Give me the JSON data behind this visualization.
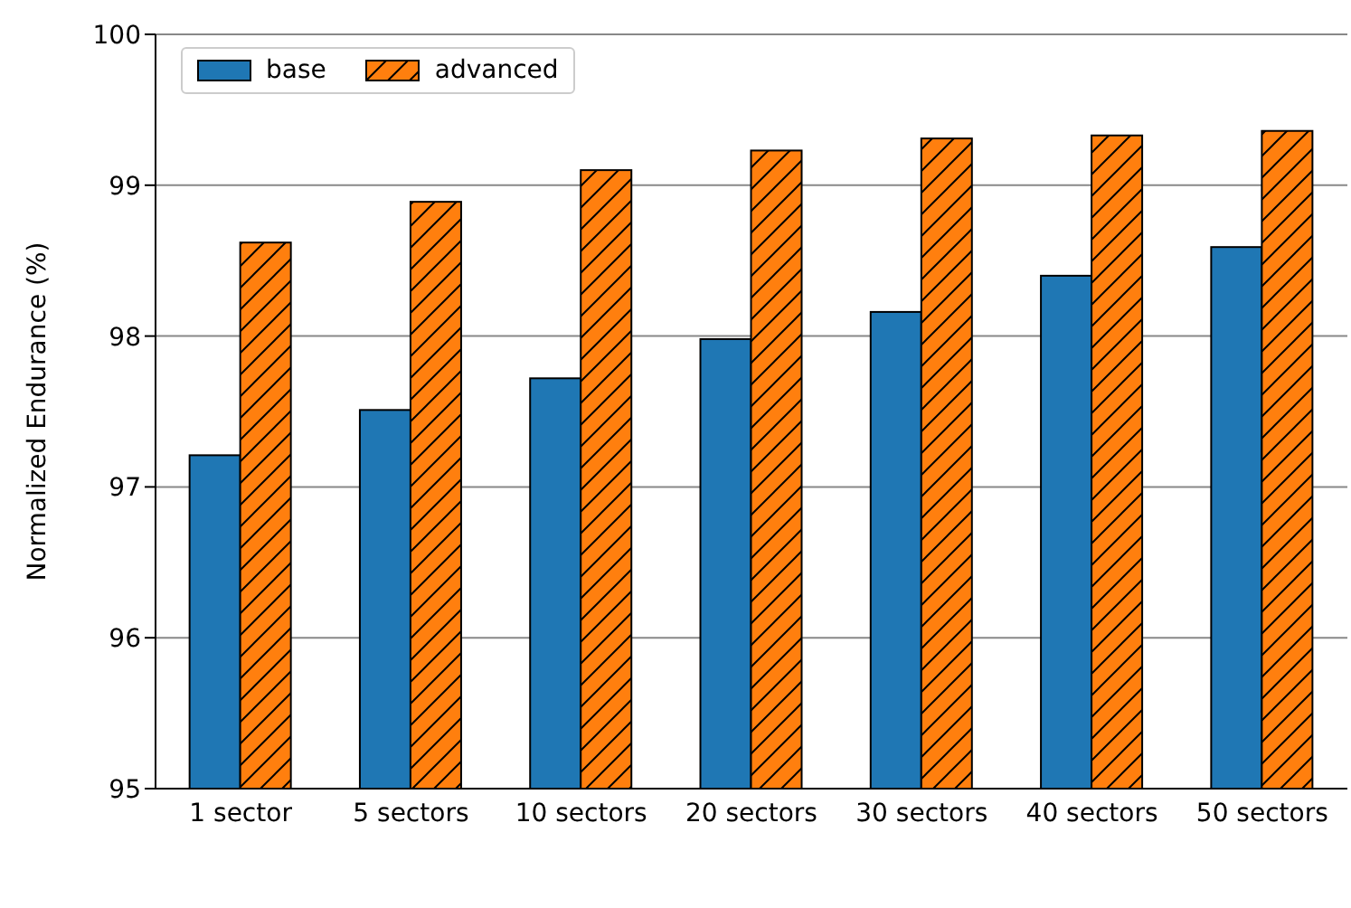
{
  "chart_data": {
    "type": "bar",
    "ylabel": "Normalized Endurance (%)",
    "categories": [
      "1 sector",
      "5 sectors",
      "10 sectors",
      "20 sectors",
      "30 sectors",
      "40 sectors",
      "50 sectors"
    ],
    "series": [
      {
        "name": "base",
        "color": "#1f77b4",
        "values": [
          97.21,
          97.51,
          97.72,
          97.98,
          98.16,
          98.4,
          98.59
        ]
      },
      {
        "name": "advanced",
        "color": "#ff7f0e",
        "values": [
          98.62,
          98.89,
          99.1,
          99.23,
          99.31,
          99.33,
          99.36
        ]
      }
    ],
    "ylim": [
      95,
      100
    ],
    "yticks": [
      95,
      96,
      97,
      98,
      99,
      100
    ],
    "grid": "y",
    "legend": "top left"
  }
}
